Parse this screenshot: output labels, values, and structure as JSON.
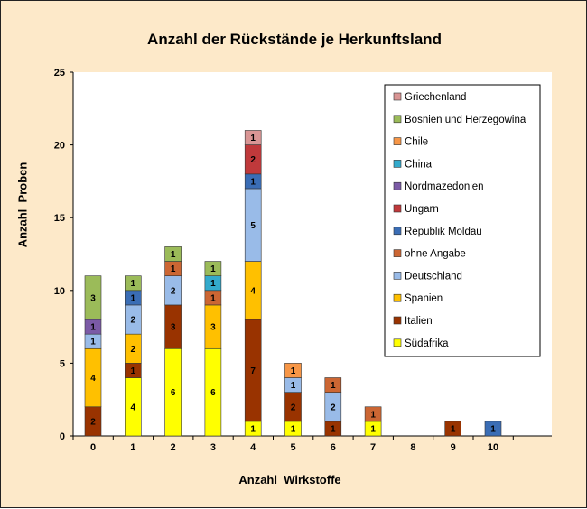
{
  "chart_data": {
    "type": "bar",
    "stacked": true,
    "title": "Anzahl der Rückstände je Herkunftsland",
    "xlabel": "Anzahl  Wirkstoffe",
    "ylabel": "Anzahl  Proben",
    "ylim": [
      0,
      25
    ],
    "yticks": [
      0,
      5,
      10,
      15,
      20,
      25
    ],
    "grid": false,
    "legend_position": "top-right",
    "categories": [
      "0",
      "1",
      "2",
      "3",
      "4",
      "5",
      "6",
      "7",
      "8",
      "9",
      "10"
    ],
    "series": [
      {
        "name": "Südafrika",
        "color": "#ffff00",
        "values": [
          0,
          4,
          6,
          6,
          1,
          1,
          0,
          1,
          0,
          0,
          0
        ]
      },
      {
        "name": "Italien",
        "color": "#993300",
        "values": [
          2,
          1,
          3,
          0,
          7,
          2,
          1,
          0,
          0,
          1,
          0
        ]
      },
      {
        "name": "Spanien",
        "color": "#ffc000",
        "values": [
          4,
          2,
          0,
          3,
          4,
          0,
          0,
          0,
          0,
          0,
          0
        ]
      },
      {
        "name": "Deutschland",
        "color": "#99bbe8",
        "values": [
          1,
          2,
          2,
          0,
          5,
          1,
          2,
          0,
          0,
          0,
          0
        ]
      },
      {
        "name": "ohne Angabe",
        "color": "#cc6633",
        "values": [
          0,
          0,
          1,
          1,
          0,
          0,
          1,
          1,
          0,
          0,
          0
        ]
      },
      {
        "name": "Republik Moldau",
        "color": "#3a6db5",
        "values": [
          0,
          1,
          0,
          0,
          1,
          0,
          0,
          0,
          0,
          0,
          1
        ]
      },
      {
        "name": "Ungarn",
        "color": "#c0393b",
        "values": [
          0,
          0,
          0,
          0,
          2,
          0,
          0,
          0,
          0,
          0,
          0
        ]
      },
      {
        "name": "Nordmazedonien",
        "color": "#7b5aa6",
        "values": [
          1,
          0,
          0,
          0,
          0,
          0,
          0,
          0,
          0,
          0,
          0
        ]
      },
      {
        "name": "China",
        "color": "#33aacc",
        "values": [
          0,
          0,
          0,
          1,
          0,
          0,
          0,
          0,
          0,
          0,
          0
        ]
      },
      {
        "name": "Chile",
        "color": "#f79646",
        "values": [
          0,
          0,
          0,
          0,
          0,
          1,
          0,
          0,
          0,
          0,
          0
        ]
      },
      {
        "name": "Bosnien und Herzegowina",
        "color": "#9bbb59",
        "values": [
          3,
          1,
          1,
          1,
          0,
          0,
          0,
          0,
          0,
          0,
          0
        ]
      },
      {
        "name": "Griechenland",
        "color": "#d99594",
        "values": [
          0,
          0,
          0,
          0,
          1,
          0,
          0,
          0,
          0,
          0,
          0
        ]
      }
    ]
  }
}
